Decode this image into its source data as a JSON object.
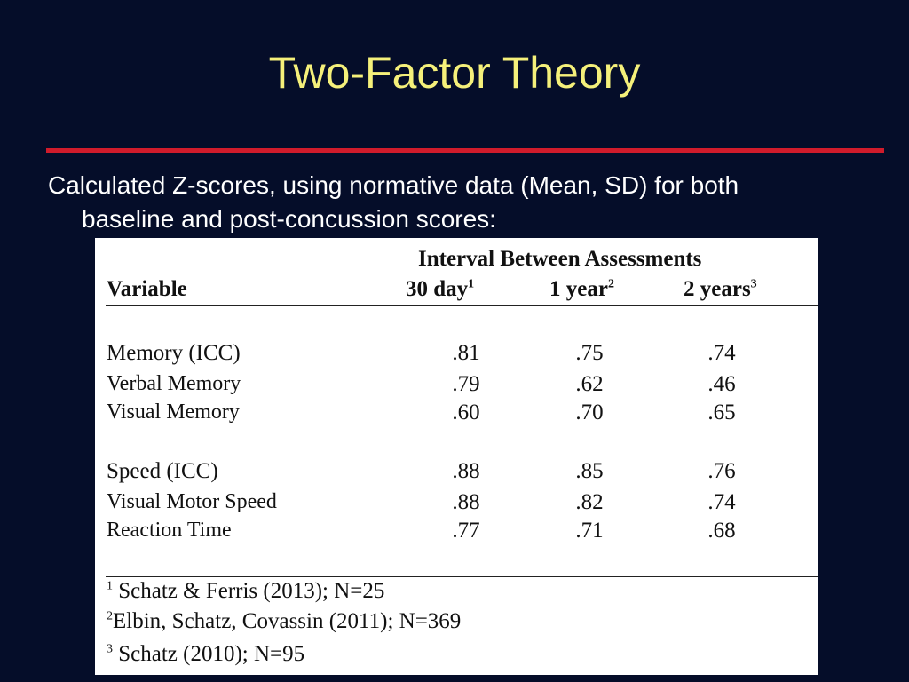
{
  "slide": {
    "title": "Two-Factor Theory",
    "intro_line1": "Calculated Z-scores, using normative data (Mean, SD) for both",
    "intro_line2": "baseline and post-concussion scores:"
  },
  "table": {
    "super_header": "Interval Between Assessments",
    "variable_header": "Variable",
    "columns": [
      {
        "label": "30 day",
        "sup": "1"
      },
      {
        "label": "1 year",
        "sup": "2"
      },
      {
        "label": "2 years",
        "sup": "3"
      }
    ],
    "rows": [
      {
        "label": "Memory (ICC)",
        "values": [
          ".81",
          ".75",
          ".74"
        ]
      },
      {
        "label": "Verbal Memory",
        "values": [
          ".79",
          ".62",
          ".46"
        ]
      },
      {
        "label": "Visual Memory",
        "values": [
          ".60",
          ".70",
          ".65"
        ]
      },
      {
        "label": "Speed (ICC)",
        "values": [
          ".88",
          ".85",
          ".76"
        ]
      },
      {
        "label": "Visual Motor Speed",
        "values": [
          ".88",
          ".82",
          ".74"
        ]
      },
      {
        "label": "Reaction Time",
        "values": [
          ".77",
          ".71",
          ".68"
        ]
      }
    ],
    "footnotes": [
      {
        "sup": "1",
        "text": "Schatz & Ferris (2013); N=25"
      },
      {
        "sup": "2",
        "text": "Elbin, Schatz, Covassin (2011); N=369"
      },
      {
        "sup": "3",
        "text": "Schatz (2010); N=95"
      }
    ]
  },
  "colors": {
    "background": "#050d29",
    "title": "#f5f07a",
    "rule": "#d01b2b",
    "text": "#ffffff"
  }
}
